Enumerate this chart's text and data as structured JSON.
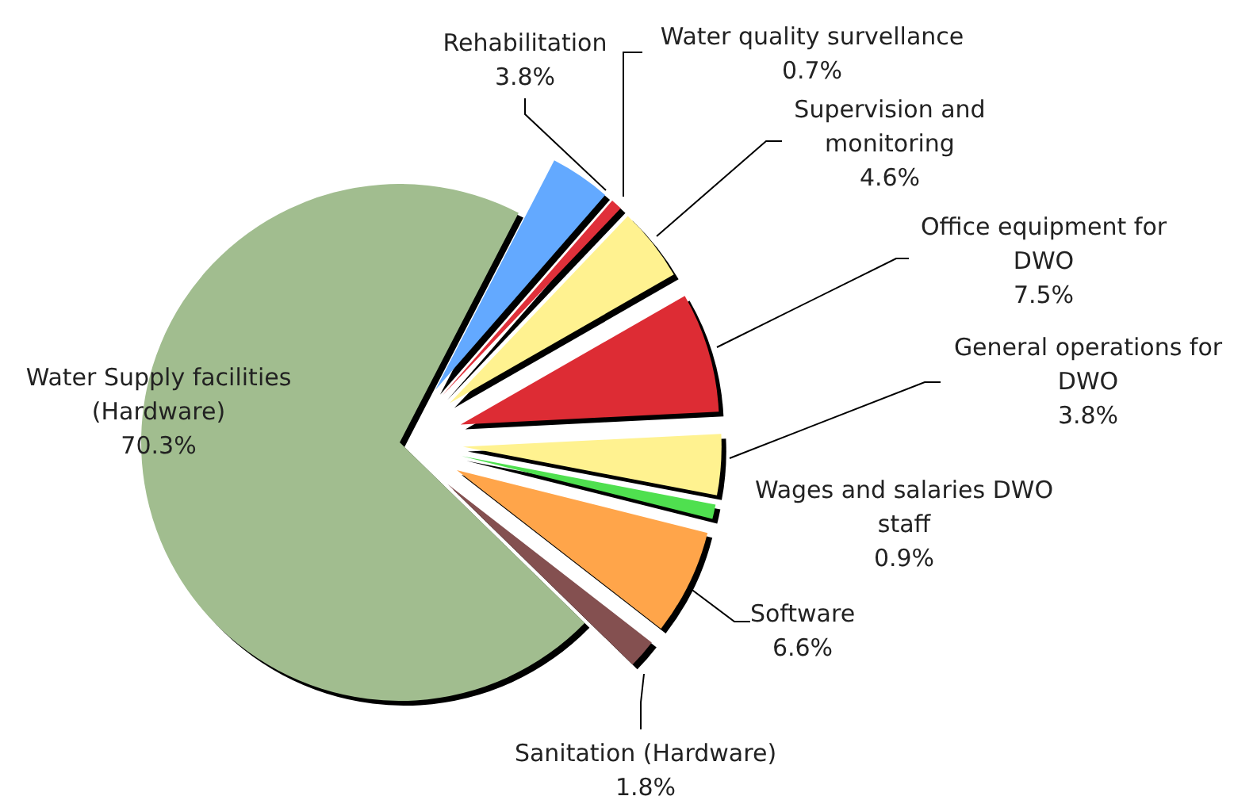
{
  "chart_data": {
    "type": "pie",
    "categories": [
      "Water Supply facilities (Hardware)",
      "Rehabilitation",
      "Water quality survellance",
      "Supervision and monitoring",
      "Office equipment for DWO",
      "General operations for DWO",
      "Wages and salaries DWO staff",
      "Software",
      "Sanitation (Hardware)"
    ],
    "values": [
      70.3,
      3.8,
      0.7,
      4.6,
      7.5,
      3.8,
      0.9,
      6.6,
      1.8
    ],
    "colors": [
      "#a1bd8f",
      "#63a9ff",
      "#e0303a",
      "#fff290",
      "#dd2c34",
      "#fff290",
      "#4fe04f",
      "#ffa54a",
      "#845050"
    ],
    "value_labels": [
      "70.3%",
      "3.8%",
      "0.7%",
      "4.6%",
      "7.5%",
      "3.8%",
      "0.9%",
      "6.6%",
      "1.8%"
    ]
  }
}
